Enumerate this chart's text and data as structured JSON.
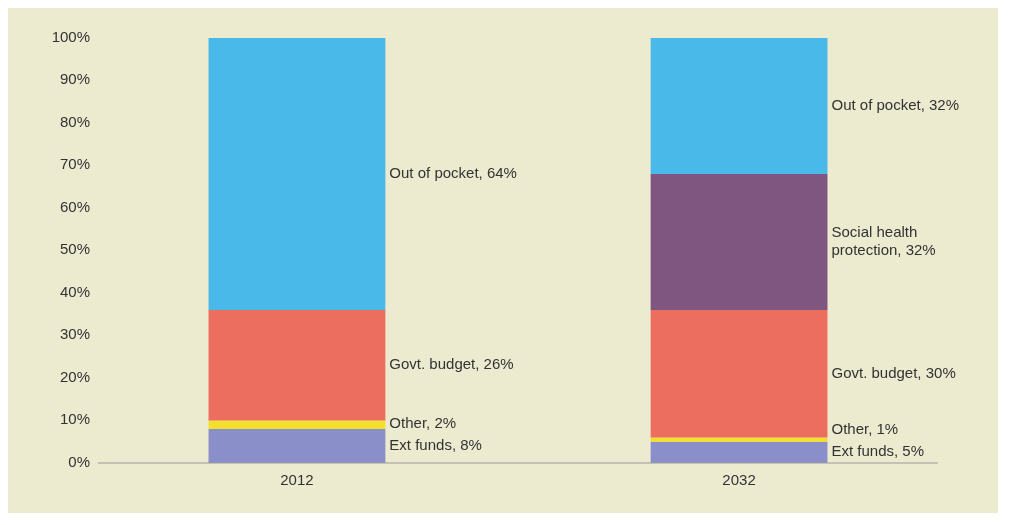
{
  "chart_data": {
    "type": "bar",
    "stacked": true,
    "categories": [
      "2012",
      "2032"
    ],
    "ylim": [
      0,
      100
    ],
    "yticks": [
      {
        "value": 0,
        "label": "0%"
      },
      {
        "value": 10,
        "label": "10%"
      },
      {
        "value": 20,
        "label": "20%"
      },
      {
        "value": 30,
        "label": "30%"
      },
      {
        "value": 40,
        "label": "40%"
      },
      {
        "value": 50,
        "label": "50%"
      },
      {
        "value": 60,
        "label": "60%"
      },
      {
        "value": 70,
        "label": "70%"
      },
      {
        "value": 80,
        "label": "80%"
      },
      {
        "value": 90,
        "label": "90%"
      },
      {
        "value": 100,
        "label": "100%"
      }
    ],
    "series": [
      {
        "name": "Ext funds,",
        "color": "#8b8fc9",
        "values": [
          8,
          5
        ],
        "value_labels": [
          "8%",
          "5%"
        ]
      },
      {
        "name": "Other,",
        "color": "#f3e02c",
        "values": [
          2,
          1
        ],
        "value_labels": [
          "2%",
          "1%"
        ]
      },
      {
        "name": "Govt. budget,",
        "color": "#ec6e5e",
        "values": [
          26,
          30
        ],
        "value_labels": [
          "26%",
          "30%"
        ]
      },
      {
        "name": "Social health protection,",
        "color": "#7f5680",
        "values": [
          null,
          32
        ],
        "value_labels": [
          null,
          "32%"
        ]
      },
      {
        "name": "Out of pocket,",
        "color": "#48b9e8",
        "values": [
          64,
          32
        ],
        "value_labels": [
          "64%",
          "32%"
        ]
      }
    ]
  }
}
